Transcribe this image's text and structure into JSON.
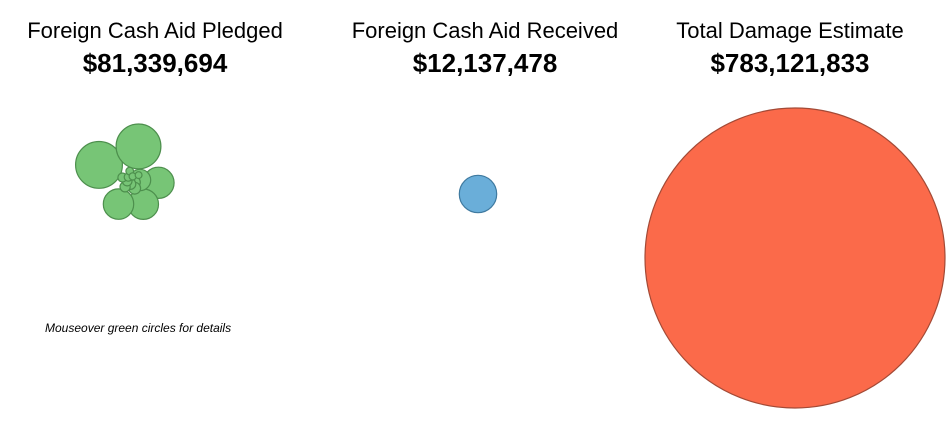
{
  "panels": [
    {
      "label": "Foreign Cash Aid Pledged",
      "value": "$81,339,694"
    },
    {
      "label": "Foreign Cash Aid Received",
      "value": "$12,137,478"
    },
    {
      "label": "Total Damage Estimate",
      "value": "$783,121,833"
    }
  ],
  "hint": "Mouseover green circles for details",
  "chart_data": {
    "type": "bubble",
    "series": [
      {
        "name": "Foreign Cash Aid Pledged",
        "total": 81339694,
        "color": "#77c576",
        "stroke": "#4d8f4d",
        "values": [
          19000000,
          17500000,
          8500000,
          8000000,
          8000000,
          4000000,
          1200000,
          1200000,
          1000000,
          900000,
          800000,
          700000,
          600000,
          500000,
          450000,
          400000
        ]
      },
      {
        "name": "Foreign Cash Aid Received",
        "total": 12137478,
        "color": "#6aaed9",
        "stroke": "#3f7aa0",
        "values": [
          12137478
        ]
      },
      {
        "name": "Total Damage Estimate",
        "total": 783121833,
        "color": "#fb6a4a",
        "stroke": "#a34a36",
        "values": [
          783121833
        ]
      }
    ]
  }
}
